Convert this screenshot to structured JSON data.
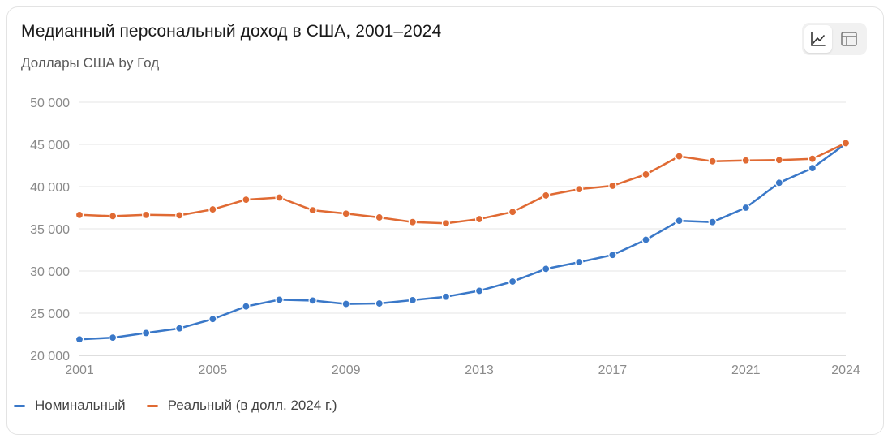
{
  "title": "Медианный персональный доход в США, 2001–2024",
  "subtitle": "Доллары США by Год",
  "view_toggle": {
    "options": [
      "line-chart-icon",
      "table-icon"
    ],
    "selected": "line-chart-icon"
  },
  "colors": {
    "nominal": "#3a78c8",
    "real": "#e06a33",
    "grid": "#e6e6e6",
    "axis": "#bdbdbd"
  },
  "chart_data": {
    "type": "line",
    "title": "Медианный персональный доход в США, 2001–2024",
    "subtitle": "Доллары США by Год",
    "x": [
      2001,
      2002,
      2003,
      2004,
      2005,
      2006,
      2007,
      2008,
      2009,
      2010,
      2011,
      2012,
      2013,
      2014,
      2015,
      2016,
      2017,
      2018,
      2019,
      2020,
      2021,
      2022,
      2023,
      2024
    ],
    "xticks": [
      "2001",
      "2005",
      "2009",
      "2013",
      "2017",
      "2021",
      "2024"
    ],
    "yticks": [
      "20 000",
      "25 000",
      "30 000",
      "35 000",
      "40 000",
      "45 000",
      "50 000"
    ],
    "ylim": [
      20000,
      50000
    ],
    "grid": true,
    "legend_position": "bottom-left",
    "series": [
      {
        "name": "Номинальный",
        "color": "#3a78c8",
        "values": [
          21900,
          22100,
          22650,
          23200,
          24300,
          25800,
          26600,
          26500,
          26100,
          26150,
          26550,
          26950,
          27650,
          28750,
          30250,
          31050,
          31900,
          33700,
          35950,
          35800,
          37500,
          40450,
          42200,
          45100
        ]
      },
      {
        "name": "Реальный (в долл. 2024 г.)",
        "color": "#e06a33",
        "values": [
          36650,
          36500,
          36650,
          36600,
          37300,
          38450,
          38700,
          37200,
          36800,
          36350,
          35800,
          35650,
          36150,
          37000,
          38950,
          39700,
          40100,
          41450,
          43600,
          43000,
          43100,
          43150,
          43300,
          45150
        ]
      }
    ]
  }
}
